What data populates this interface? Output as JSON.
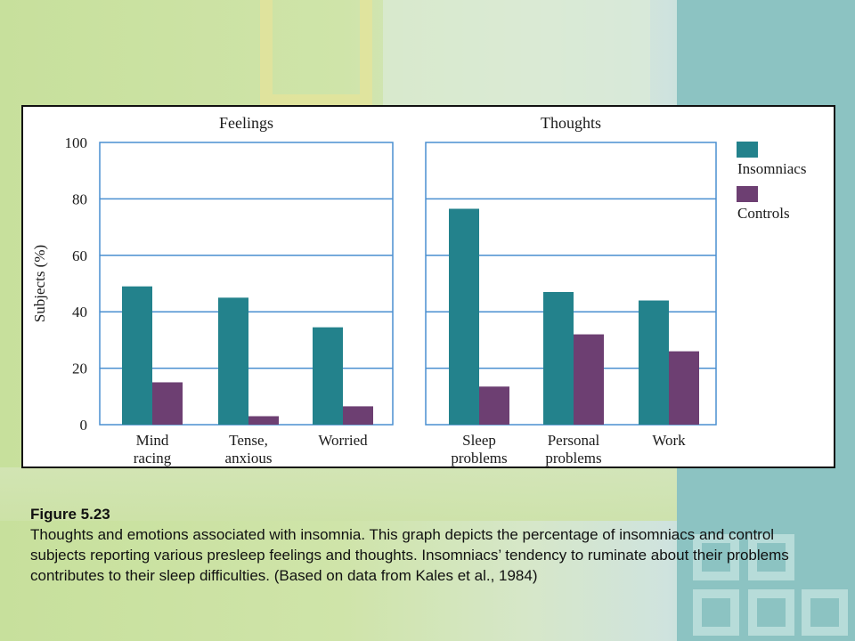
{
  "chart_data": {
    "type": "bar",
    "ylabel": "Subjects (%)",
    "ylim": [
      0,
      100
    ],
    "yticks": [
      0,
      20,
      40,
      60,
      80,
      100
    ],
    "grid": true,
    "legend_position": "right",
    "series": [
      {
        "name": "Insomniacs",
        "color": "#23828c"
      },
      {
        "name": "Controls",
        "color": "#6d3f72"
      }
    ],
    "panels": [
      {
        "title": "Feelings",
        "categories": [
          "Mind\nracing",
          "Tense,\nanxious",
          "Worried"
        ],
        "insomniacs": [
          49,
          45,
          34.5
        ],
        "controls": [
          15,
          3,
          6.5
        ]
      },
      {
        "title": "Thoughts",
        "categories": [
          "Sleep\nproblems",
          "Personal\nproblems",
          "Work"
        ],
        "insomniacs": [
          76.5,
          47,
          44
        ],
        "controls": [
          13.5,
          32,
          26
        ]
      }
    ]
  },
  "caption": {
    "title": "Figure 5.23",
    "text": "Thoughts and emotions associated with insomnia. This graph depicts the percentage of insomniacs and control subjects reporting various presleep feelings and thoughts. Insomniacs’ tendency to ruminate about their problems contributes to their sleep difficulties. (Based on data from Kales et al., 1984)"
  }
}
